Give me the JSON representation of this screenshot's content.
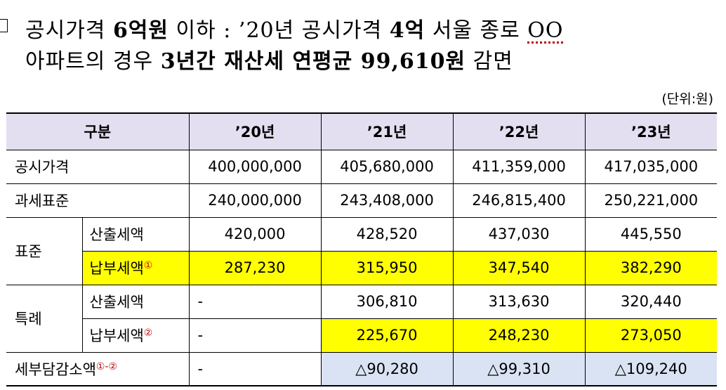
{
  "heading": {
    "line1_prefix": "공시가격 ",
    "line1_bold1": "6억원",
    "line1_mid": " 이하 : ’20년 공시가격 ",
    "line1_bold2": "4억",
    "line1_suffix": " 서울 종로 ",
    "line1_oo": "OO",
    "line2_prefix": "아파트의 경우 ",
    "line2_bold": "3년간 재산세 연평균 99,610원",
    "line2_suffix": " 감면"
  },
  "unit": "(단위:원)",
  "table": {
    "headers": [
      "구분",
      "’20년",
      "’21년",
      "’22년",
      "’23년"
    ],
    "official_price": {
      "label": "공시가격",
      "values": [
        "400,000,000",
        "405,680,000",
        "411,359,000",
        "417,035,000"
      ]
    },
    "tax_base": {
      "label": "과세표준",
      "values": [
        "240,000,000",
        "243,408,000",
        "246,815,400",
        "250,221,000"
      ]
    },
    "standard": {
      "label": "표준",
      "calc": {
        "label": "산출세액",
        "values": [
          "420,000",
          "428,520",
          "437,030",
          "445,550"
        ]
      },
      "paid": {
        "label": "납부세액",
        "mark": "①",
        "values": [
          "287,230",
          "315,950",
          "347,540",
          "382,290"
        ]
      }
    },
    "special": {
      "label": "특례",
      "calc": {
        "label": "산출세액",
        "values": [
          "-",
          "306,810",
          "313,630",
          "320,440"
        ]
      },
      "paid": {
        "label": "납부세액",
        "mark": "②",
        "values": [
          "-",
          "225,670",
          "248,230",
          "273,050"
        ]
      }
    },
    "reduction": {
      "label": "세부담감소액",
      "mark": "①-②",
      "values": [
        "-",
        "△90,280",
        "△99,310",
        "△109,240"
      ]
    }
  }
}
